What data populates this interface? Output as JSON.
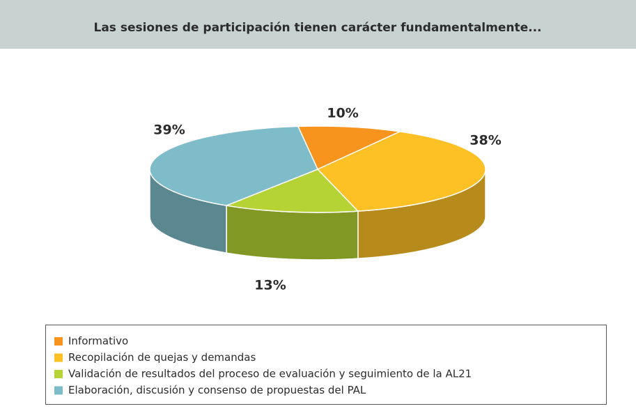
{
  "chart_data": {
    "type": "pie",
    "title": "Las sesiones de participación tienen carácter fundamentalmente...",
    "categories": [
      "Informativo",
      "Recopilación de quejas y demandas",
      "Validación de resultados del proceso de evaluación y seguimiento de la AL21",
      "Elaboración, discusión y consenso de propuestas del PAL"
    ],
    "values": [
      10,
      38,
      13,
      39
    ],
    "value_labels": [
      "10%",
      "38%",
      "13%",
      "39%"
    ],
    "colors": [
      "#f7941d",
      "#fdc125",
      "#b5d334",
      "#7dbcc8"
    ],
    "legend": "bottom"
  }
}
